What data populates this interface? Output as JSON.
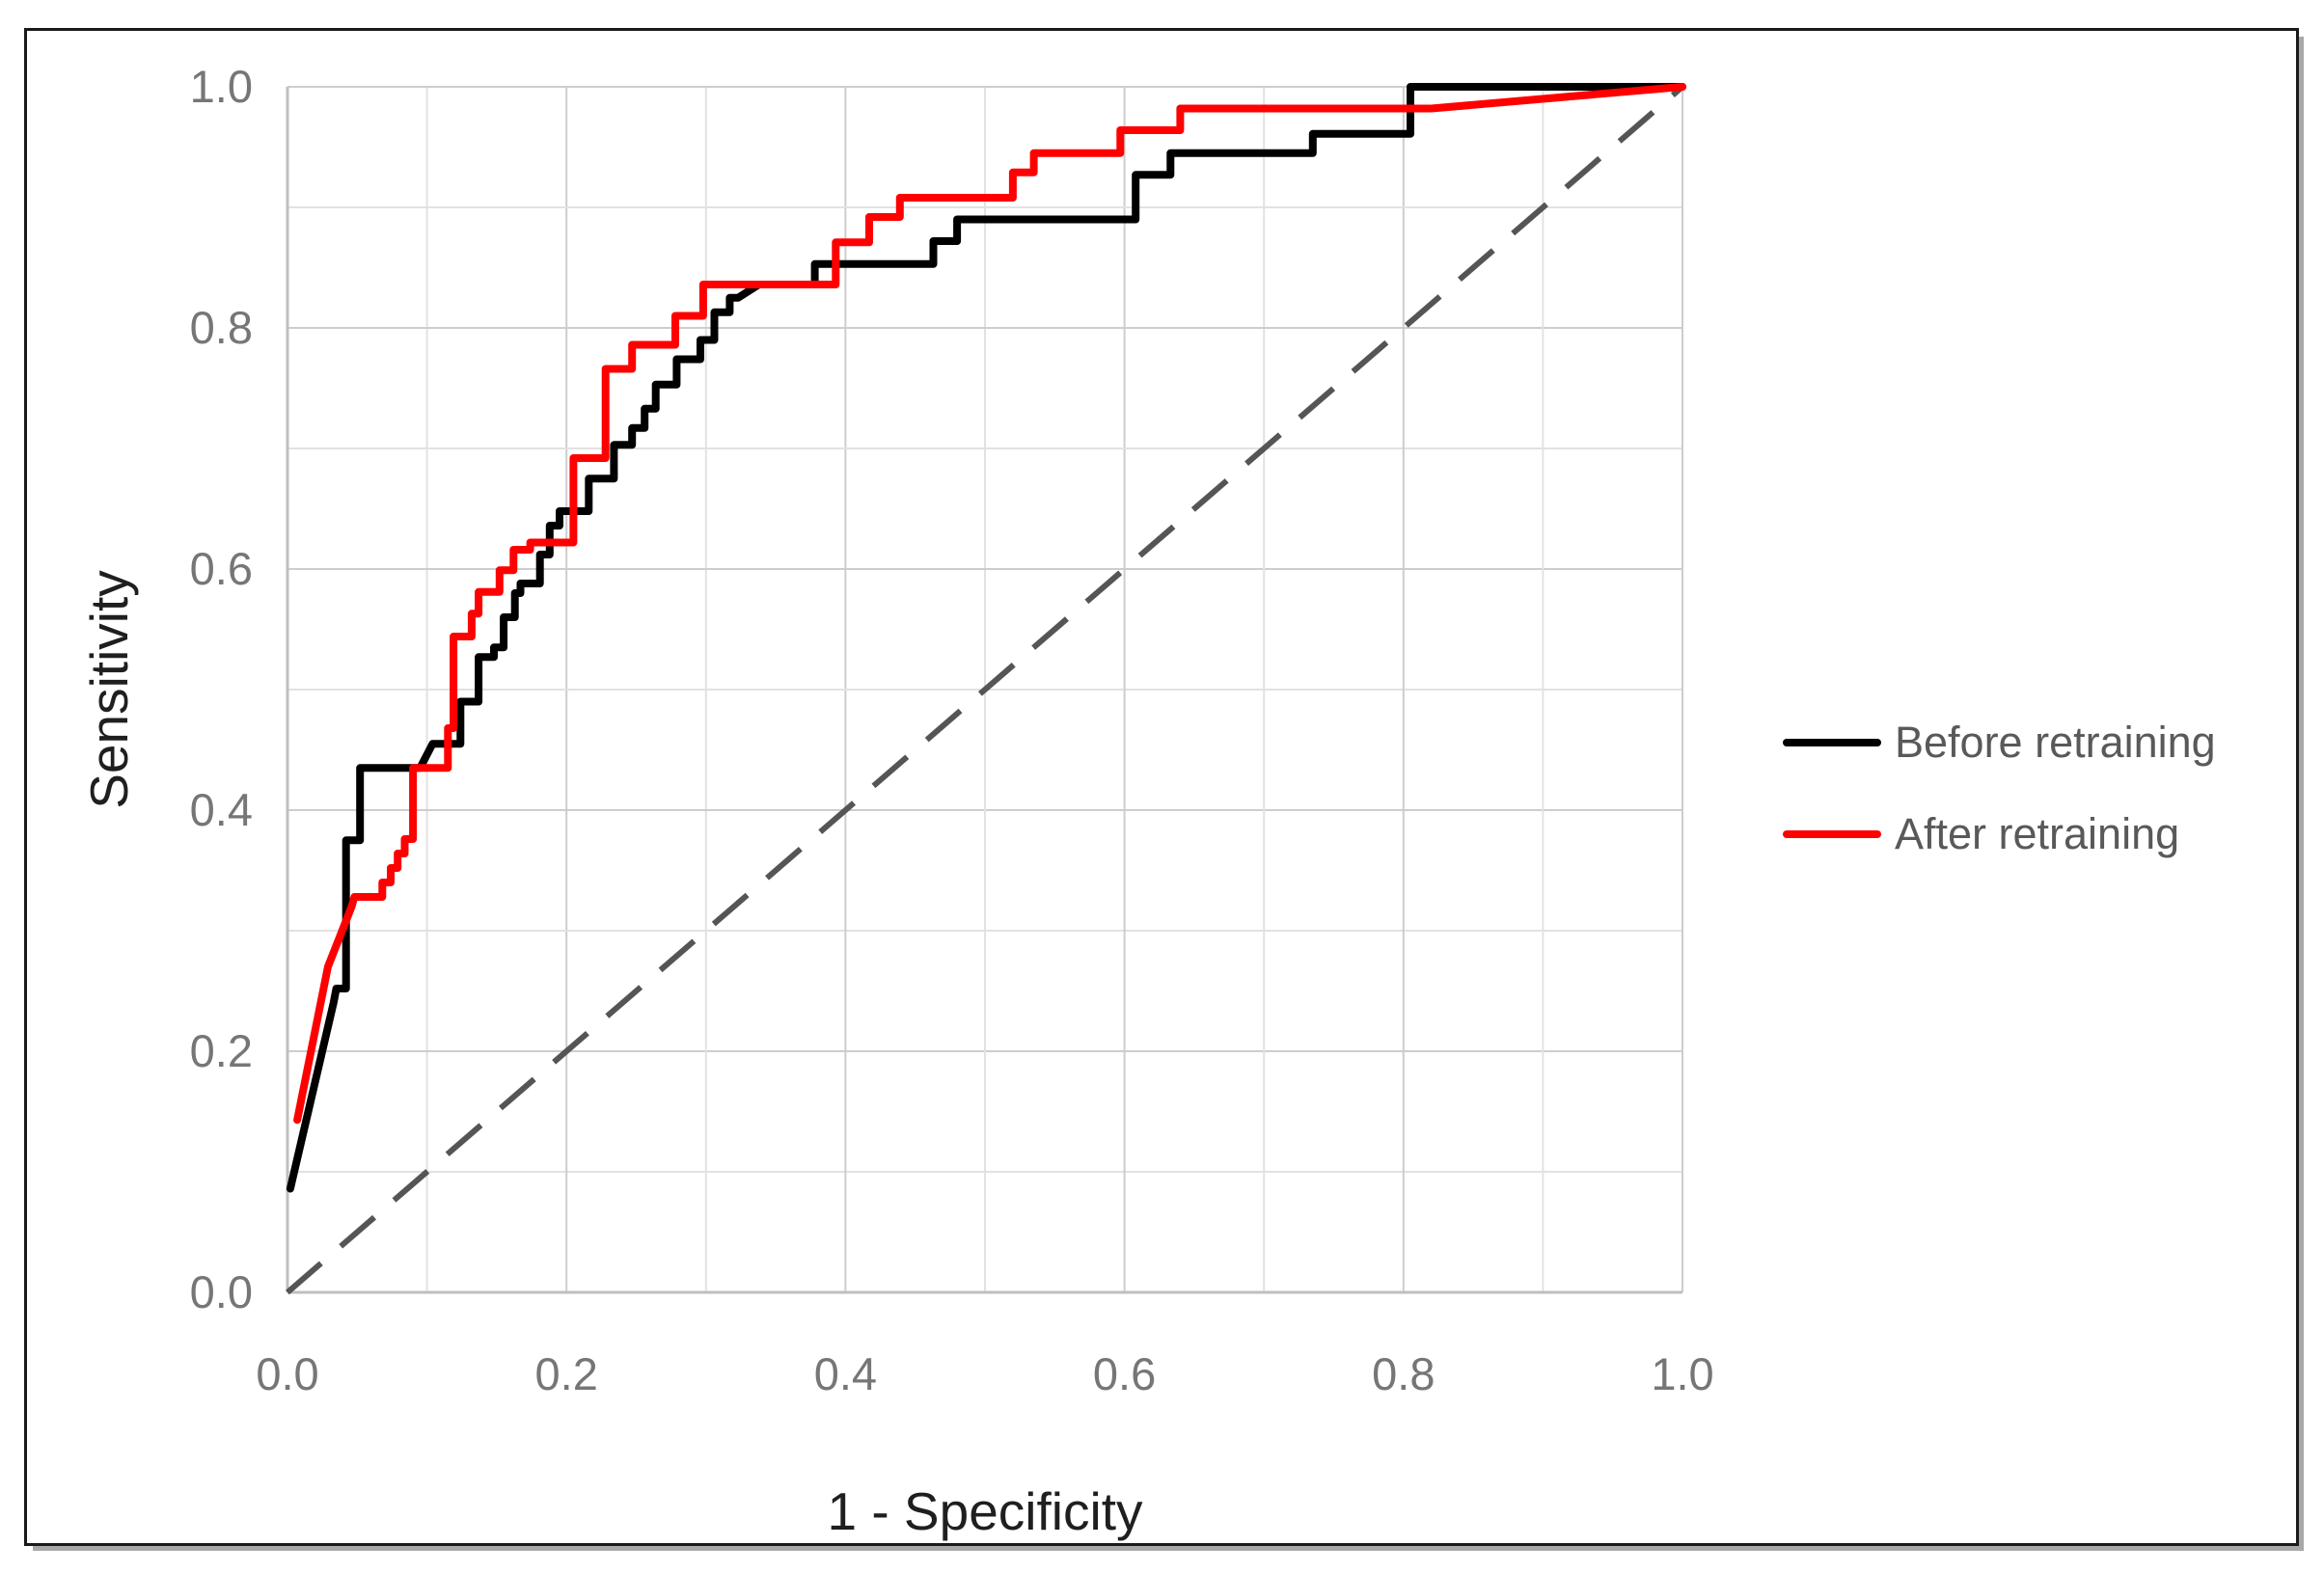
{
  "chart_data": {
    "type": "line",
    "subtype": "roc-step-curves",
    "title": "",
    "xlabel": "1 - Specificity",
    "ylabel": "Sensitivity",
    "xlim": [
      0,
      1
    ],
    "ylim": [
      0,
      1
    ],
    "x_tick_labels": [
      "0.0",
      "0.2",
      "0.4",
      "0.6",
      "0.8",
      "1.0"
    ],
    "y_tick_labels": [
      "0.0",
      "0.2",
      "0.4",
      "0.6",
      "0.8",
      "1.0"
    ],
    "tick_step": 0.2,
    "grid": {
      "visible": true,
      "minor_step": 0.1,
      "major_step": 0.2
    },
    "legend_position": "right",
    "reference_line": {
      "name": "chance diagonal",
      "style": "dashed",
      "color": "#555555",
      "points": [
        [
          0,
          0
        ],
        [
          1,
          1
        ]
      ]
    },
    "series": [
      {
        "name": "Before retraining",
        "color": "#000000",
        "points": [
          [
            0.002,
            0.086
          ],
          [
            0.033,
            0.24
          ],
          [
            0.035,
            0.252
          ],
          [
            0.042,
            0.252
          ],
          [
            0.042,
            0.375
          ],
          [
            0.052,
            0.375
          ],
          [
            0.052,
            0.435
          ],
          [
            0.095,
            0.435
          ],
          [
            0.104,
            0.455
          ],
          [
            0.124,
            0.455
          ],
          [
            0.124,
            0.49
          ],
          [
            0.137,
            0.49
          ],
          [
            0.137,
            0.527
          ],
          [
            0.148,
            0.527
          ],
          [
            0.148,
            0.535
          ],
          [
            0.155,
            0.535
          ],
          [
            0.155,
            0.56
          ],
          [
            0.163,
            0.56
          ],
          [
            0.163,
            0.58
          ],
          [
            0.167,
            0.58
          ],
          [
            0.167,
            0.588
          ],
          [
            0.181,
            0.588
          ],
          [
            0.181,
            0.612
          ],
          [
            0.188,
            0.612
          ],
          [
            0.188,
            0.636
          ],
          [
            0.195,
            0.636
          ],
          [
            0.195,
            0.648
          ],
          [
            0.216,
            0.648
          ],
          [
            0.216,
            0.675
          ],
          [
            0.234,
            0.675
          ],
          [
            0.234,
            0.703
          ],
          [
            0.247,
            0.703
          ],
          [
            0.247,
            0.717
          ],
          [
            0.256,
            0.717
          ],
          [
            0.256,
            0.733
          ],
          [
            0.264,
            0.733
          ],
          [
            0.264,
            0.753
          ],
          [
            0.279,
            0.753
          ],
          [
            0.279,
            0.774
          ],
          [
            0.296,
            0.774
          ],
          [
            0.296,
            0.79
          ],
          [
            0.306,
            0.79
          ],
          [
            0.306,
            0.813
          ],
          [
            0.317,
            0.813
          ],
          [
            0.317,
            0.825
          ],
          [
            0.323,
            0.825
          ],
          [
            0.338,
            0.836
          ],
          [
            0.378,
            0.836
          ],
          [
            0.378,
            0.853
          ],
          [
            0.463,
            0.853
          ],
          [
            0.463,
            0.872
          ],
          [
            0.48,
            0.872
          ],
          [
            0.48,
            0.89
          ],
          [
            0.608,
            0.89
          ],
          [
            0.608,
            0.927
          ],
          [
            0.633,
            0.927
          ],
          [
            0.633,
            0.945
          ],
          [
            0.735,
            0.945
          ],
          [
            0.735,
            0.961
          ],
          [
            0.805,
            0.961
          ],
          [
            0.805,
            1.0
          ],
          [
            1.0,
            1.0
          ]
        ]
      },
      {
        "name": "After retraining",
        "color": "#ff0000",
        "points": [
          [
            0.007,
            0.143
          ],
          [
            0.029,
            0.27
          ],
          [
            0.046,
            0.32
          ],
          [
            0.048,
            0.328
          ],
          [
            0.068,
            0.328
          ],
          [
            0.068,
            0.34
          ],
          [
            0.074,
            0.34
          ],
          [
            0.074,
            0.352
          ],
          [
            0.079,
            0.352
          ],
          [
            0.079,
            0.364
          ],
          [
            0.084,
            0.364
          ],
          [
            0.084,
            0.376
          ],
          [
            0.09,
            0.376
          ],
          [
            0.09,
            0.435
          ],
          [
            0.115,
            0.435
          ],
          [
            0.115,
            0.468
          ],
          [
            0.119,
            0.468
          ],
          [
            0.119,
            0.544
          ],
          [
            0.132,
            0.544
          ],
          [
            0.132,
            0.563
          ],
          [
            0.137,
            0.563
          ],
          [
            0.137,
            0.581
          ],
          [
            0.152,
            0.581
          ],
          [
            0.152,
            0.599
          ],
          [
            0.162,
            0.599
          ],
          [
            0.162,
            0.616
          ],
          [
            0.174,
            0.616
          ],
          [
            0.174,
            0.622
          ],
          [
            0.205,
            0.622
          ],
          [
            0.205,
            0.692
          ],
          [
            0.228,
            0.692
          ],
          [
            0.228,
            0.766
          ],
          [
            0.247,
            0.766
          ],
          [
            0.247,
            0.786
          ],
          [
            0.278,
            0.786
          ],
          [
            0.278,
            0.81
          ],
          [
            0.298,
            0.81
          ],
          [
            0.298,
            0.836
          ],
          [
            0.393,
            0.836
          ],
          [
            0.393,
            0.871
          ],
          [
            0.417,
            0.871
          ],
          [
            0.417,
            0.892
          ],
          [
            0.439,
            0.892
          ],
          [
            0.439,
            0.908
          ],
          [
            0.52,
            0.908
          ],
          [
            0.52,
            0.929
          ],
          [
            0.535,
            0.929
          ],
          [
            0.535,
            0.945
          ],
          [
            0.597,
            0.945
          ],
          [
            0.597,
            0.964
          ],
          [
            0.64,
            0.964
          ],
          [
            0.64,
            0.982
          ],
          [
            0.82,
            0.982
          ],
          [
            1.0,
            1.0
          ]
        ]
      }
    ]
  },
  "legend": {
    "items": [
      {
        "label": "Before retraining",
        "color": "#000000"
      },
      {
        "label": "After retraining",
        "color": "#ff0000"
      }
    ]
  },
  "colors": {
    "curve_before": "#000000",
    "curve_after": "#ff0000",
    "diagonal": "#555555",
    "grid_minor": "#e2e2e2",
    "grid_major": "#cdcdcd",
    "axis_line": "#bfbfbf",
    "tick_text": "#767676",
    "title_text": "#1f1f1f",
    "legend_text": "#595959",
    "frame_border": "#1a1a1a"
  }
}
